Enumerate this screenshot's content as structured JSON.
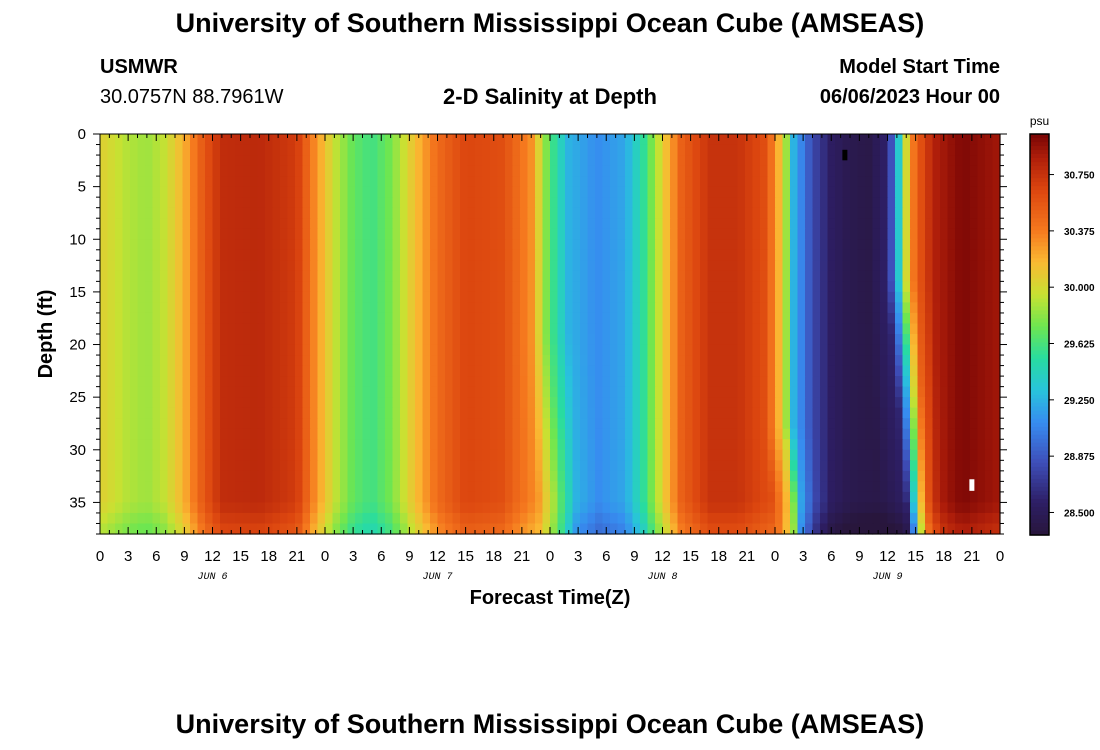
{
  "title": "University of Southern Mississippi Ocean Cube (AMSEAS)",
  "station": {
    "id": "USMWR",
    "coords": "30.0757N  88.7961W"
  },
  "subtitle": "2-D Salinity at Depth",
  "model_start": {
    "label": "Model Start Time",
    "value": "06/06/2023 Hour 00"
  },
  "footer_title": "University of Southern Mississippi Ocean Cube (AMSEAS)",
  "chart_data": {
    "type": "heatmap",
    "title": "2-D Salinity at Depth",
    "xlabel": "Forecast Time(Z)",
    "ylabel": "Depth (ft)",
    "xlim": [
      0,
      96
    ],
    "ylim": [
      38,
      0
    ],
    "x_ticks": [
      0,
      3,
      6,
      9,
      12,
      15,
      18,
      21,
      24,
      27,
      30,
      33,
      36,
      39,
      42,
      45,
      48,
      51,
      54,
      57,
      60,
      63,
      66,
      69,
      72,
      75,
      78,
      81,
      84,
      87,
      90,
      93,
      96
    ],
    "x_tick_labels": [
      "0",
      "3",
      "6",
      "9",
      "12",
      "15",
      "18",
      "21",
      "0",
      "3",
      "6",
      "9",
      "12",
      "15",
      "18",
      "21",
      "0",
      "3",
      "6",
      "9",
      "12",
      "15",
      "18",
      "21",
      "0",
      "3",
      "6",
      "9",
      "12",
      "15",
      "18",
      "21",
      "0"
    ],
    "day_labels": [
      {
        "hour": 12,
        "text": "JUN 6"
      },
      {
        "hour": 36,
        "text": "JUN 7"
      },
      {
        "hour": 60,
        "text": "JUN 8"
      },
      {
        "hour": 84,
        "text": "JUN 9"
      }
    ],
    "y_ticks": [
      0,
      5,
      10,
      15,
      20,
      25,
      30,
      35
    ],
    "colorbar": {
      "unit": "psu",
      "min": 28.35,
      "max": 31.02,
      "tick_values": [
        30.75,
        30.375,
        30.0,
        29.625,
        29.25,
        28.875,
        28.5
      ],
      "tick_labels": [
        "30.750",
        "30.375",
        "30.000",
        "29.625",
        "29.250",
        "28.875",
        "28.500"
      ]
    },
    "surface_salinity_by_hour": [
      {
        "hour": 0,
        "value": 30.05
      },
      {
        "hour": 3,
        "value": 29.9
      },
      {
        "hour": 5,
        "value": 29.85
      },
      {
        "hour": 7,
        "value": 29.95
      },
      {
        "hour": 9,
        "value": 30.2
      },
      {
        "hour": 11,
        "value": 30.55
      },
      {
        "hour": 13,
        "value": 30.78
      },
      {
        "hour": 17,
        "value": 30.8
      },
      {
        "hour": 21,
        "value": 30.7
      },
      {
        "hour": 23,
        "value": 30.3
      },
      {
        "hour": 25,
        "value": 29.95
      },
      {
        "hour": 27,
        "value": 29.7
      },
      {
        "hour": 29,
        "value": 29.6
      },
      {
        "hour": 31,
        "value": 29.75
      },
      {
        "hour": 33,
        "value": 30.05
      },
      {
        "hour": 36,
        "value": 30.45
      },
      {
        "hour": 39,
        "value": 30.65
      },
      {
        "hour": 43,
        "value": 30.6
      },
      {
        "hour": 46,
        "value": 30.3
      },
      {
        "hour": 48,
        "value": 29.65
      },
      {
        "hour": 50,
        "value": 29.25
      },
      {
        "hour": 53,
        "value": 29.1
      },
      {
        "hour": 56,
        "value": 29.2
      },
      {
        "hour": 58,
        "value": 29.55
      },
      {
        "hour": 60,
        "value": 30.05
      },
      {
        "hour": 62,
        "value": 30.5
      },
      {
        "hour": 65,
        "value": 30.75
      },
      {
        "hour": 68,
        "value": 30.75
      },
      {
        "hour": 71,
        "value": 30.6
      },
      {
        "hour": 73,
        "value": 30.0
      },
      {
        "hour": 74,
        "value": 29.25
      },
      {
        "hour": 76,
        "value": 28.8
      },
      {
        "hour": 78,
        "value": 28.55
      },
      {
        "hour": 80,
        "value": 28.45
      },
      {
        "hour": 82,
        "value": 28.42
      },
      {
        "hour": 84,
        "value": 28.6
      },
      {
        "hour": 85,
        "value": 29.2
      },
      {
        "hour": 86,
        "value": 30.0
      },
      {
        "hour": 87,
        "value": 30.5
      },
      {
        "hour": 89,
        "value": 30.85
      },
      {
        "hour": 92,
        "value": 31.0
      },
      {
        "hour": 96,
        "value": 30.9
      }
    ],
    "frontal_depth_shifts_hours": [
      {
        "front_hour": 49,
        "shift_at_bottom": 1.5,
        "shift_start_depth": 19
      },
      {
        "front_hour": 85.5,
        "shift_at_bottom": 2.5,
        "shift_start_depth": 14
      },
      {
        "front_hour": 72.8,
        "shift_at_bottom": 1.3,
        "shift_start_depth": 28
      }
    ]
  }
}
